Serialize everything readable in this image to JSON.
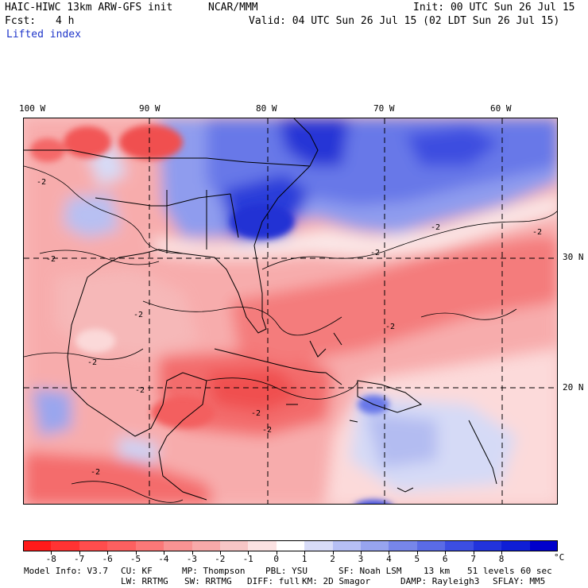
{
  "header": {
    "model_title": "HAIC-HIWC 13km ARW-GFS init",
    "center": "NCAR/MMM",
    "init_line": "Init: 00 UTC Sun 26 Jul 15",
    "fcst_label": "Fcst:",
    "fcst_value": "4 h",
    "valid_line": "Valid: 04 UTC Sun 26 Jul 15 (02 LDT Sun 26 Jul 15)",
    "field": "Lifted index"
  },
  "map": {
    "lon_labels": [
      "100 W",
      "90 W",
      "80 W",
      "70 W",
      "60 W"
    ],
    "lat_labels": [
      "30 N",
      "20 N"
    ],
    "contour_label": "-2"
  },
  "colorbar": {
    "tick_labels": [
      "-8",
      "-7",
      "-6",
      "-5",
      "-4",
      "-3",
      "-2",
      "-1",
      "0",
      "1",
      "2",
      "3",
      "4",
      "5",
      "6",
      "7",
      "8"
    ],
    "unit": "°C",
    "colors": [
      "#ff1a1a",
      "#ff3333",
      "#ff4d4d",
      "#fd6060",
      "#fb7878",
      "#f99393",
      "#f8aaaa",
      "#f7c6c6",
      "#fbe2e2",
      "#ffffff",
      "#d8dcf8",
      "#b6bff4",
      "#97a4ef",
      "#7786ea",
      "#5a6be6",
      "#3c4ee2",
      "#2233dc",
      "#0f1ed6",
      "#0000cc"
    ]
  },
  "footer": {
    "line1": {
      "model_info": "Model Info: V3.7",
      "cu": "CU: KF",
      "mp": "MP: Thompson",
      "pbl": "PBL: YSU",
      "sf": "SF: Noah LSM",
      "res": "13 km",
      "levels": "51 levels",
      "dt": "60 sec"
    },
    "line2": {
      "lw": "LW: RRTMG",
      "sw": "SW: RRTMG",
      "diff": "DIFF: full",
      "km": "KM: 2D Smagor",
      "damp": "DAMP: Rayleigh3",
      "sflay": "SFLAY: MM5"
    }
  }
}
